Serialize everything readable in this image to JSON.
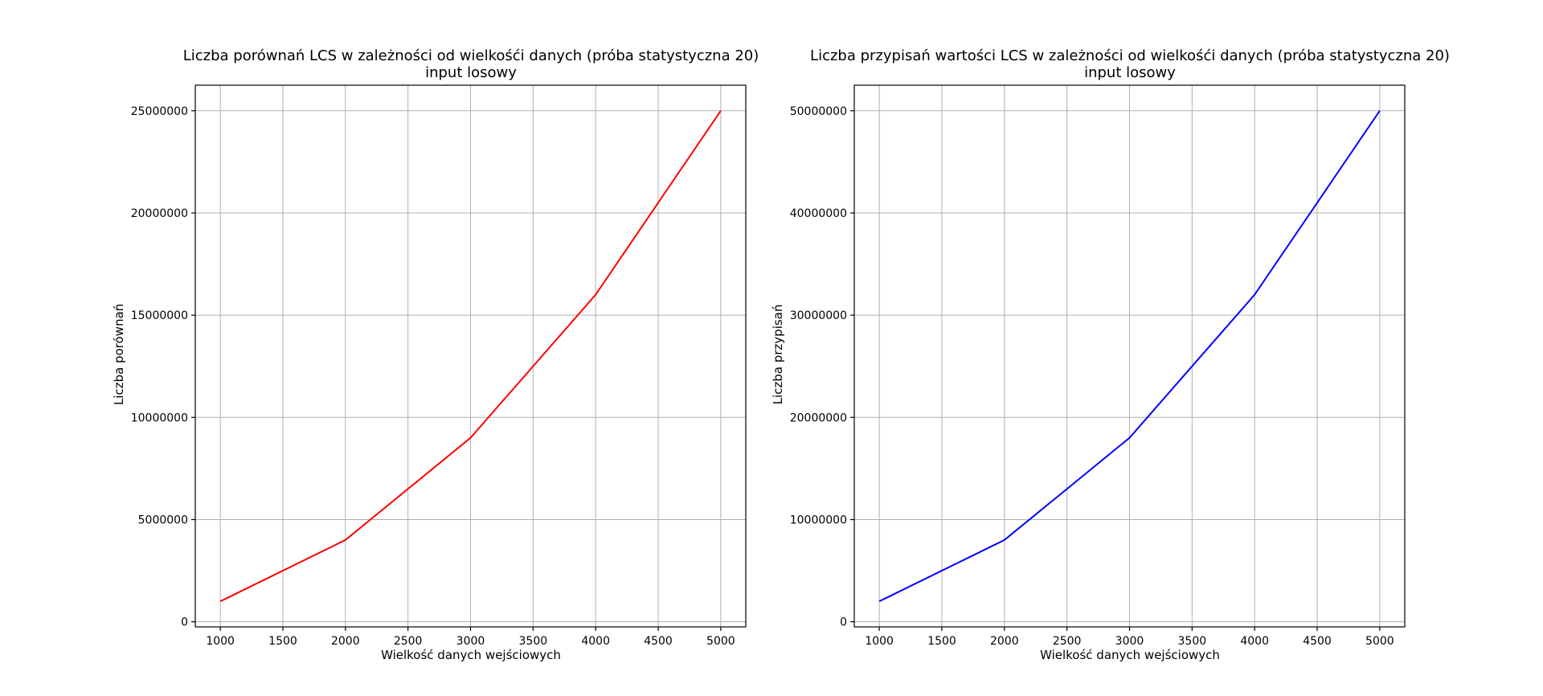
{
  "chart_data": [
    {
      "type": "line",
      "title": "Liczba porównań LCS w zależności od wielkośći danych (próba statystyczna 20)",
      "subtitle": "input losowy",
      "xlabel": "Wielkość danych wejściowych",
      "ylabel": "Liczba porównań",
      "x": [
        1000,
        2000,
        3000,
        4000,
        5000
      ],
      "series": [
        {
          "values": [
            1000000,
            4000000,
            9000000,
            16000000,
            25000000
          ],
          "color": "#ff0000"
        }
      ],
      "xlim": [
        800,
        5200
      ],
      "ylim": [
        -250000,
        26250000
      ],
      "xticks": [
        1000,
        1500,
        2000,
        2500,
        3000,
        3500,
        4000,
        4500,
        5000
      ],
      "yticks": [
        0,
        5000000,
        10000000,
        15000000,
        20000000,
        25000000
      ],
      "xtick_labels": [
        "1000",
        "1500",
        "2000",
        "2500",
        "3000",
        "3500",
        "4000",
        "4500",
        "5000"
      ],
      "ytick_labels": [
        "0",
        "5000000",
        "10000000",
        "15000000",
        "20000000",
        "25000000"
      ],
      "grid": true
    },
    {
      "type": "line",
      "title": "Liczba przypisań wartości LCS w zależności od wielkośći danych (próba statystyczna 20)",
      "subtitle": "input losowy",
      "xlabel": "Wielkość danych wejściowych",
      "ylabel": "Liczba przypisań",
      "x": [
        1000,
        2000,
        3000,
        4000,
        5000
      ],
      "series": [
        {
          "values": [
            2000000,
            8000000,
            18000000,
            32000000,
            50000000
          ],
          "color": "#0000ff"
        }
      ],
      "xlim": [
        800,
        5200
      ],
      "ylim": [
        -500000,
        52500000
      ],
      "xticks": [
        1000,
        1500,
        2000,
        2500,
        3000,
        3500,
        4000,
        4500,
        5000
      ],
      "yticks": [
        0,
        10000000,
        20000000,
        30000000,
        40000000,
        50000000
      ],
      "xtick_labels": [
        "1000",
        "1500",
        "2000",
        "2500",
        "3000",
        "3500",
        "4000",
        "4500",
        "5000"
      ],
      "ytick_labels": [
        "0",
        "10000000",
        "20000000",
        "30000000",
        "40000000",
        "50000000"
      ],
      "grid": true
    }
  ]
}
